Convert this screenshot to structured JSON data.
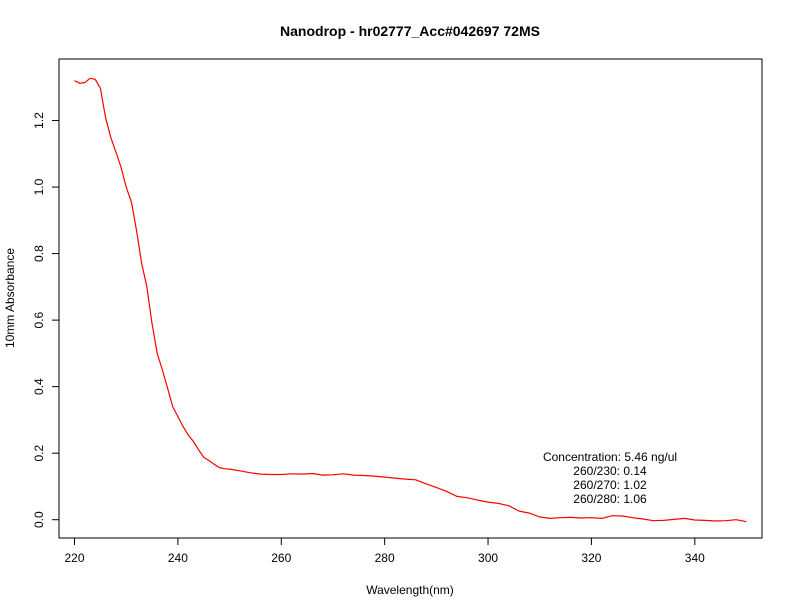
{
  "chart_data": {
    "type": "line",
    "title": "Nanodrop - hr02777_Acc#042697 72MS",
    "xlabel": "Wavelength(nm)",
    "ylabel": "10mm Absorbance",
    "xlim": [
      217,
      353
    ],
    "ylim": [
      -0.055,
      1.385
    ],
    "x_ticks": [
      220,
      240,
      260,
      280,
      300,
      320,
      340
    ],
    "y_ticks": [
      0.0,
      0.2,
      0.4,
      0.6,
      0.8,
      1.0,
      1.2
    ],
    "x_tick_labels": [
      "220",
      "240",
      "260",
      "280",
      "300",
      "320",
      "340"
    ],
    "y_tick_labels": [
      "0.0",
      "0.2",
      "0.4",
      "0.6",
      "0.8",
      "1.0",
      "1.2"
    ],
    "grid": false,
    "series": [
      {
        "color": "#ff0000",
        "x": [
          220,
          221,
          222,
          223,
          224,
          225,
          226,
          227,
          228,
          229,
          230,
          231,
          232,
          233,
          234,
          235,
          236,
          237,
          238,
          239,
          240,
          241,
          242,
          243,
          244,
          245,
          246,
          247,
          248,
          249,
          250,
          252,
          254,
          256,
          258,
          260,
          262,
          264,
          266,
          268,
          270,
          272,
          274,
          276,
          278,
          280,
          282,
          284,
          286,
          288,
          290,
          292,
          294,
          296,
          298,
          300,
          302,
          304,
          306,
          308,
          310,
          312,
          314,
          316,
          318,
          320,
          322,
          324,
          326,
          328,
          330,
          332,
          334,
          336,
          338,
          340,
          342,
          344,
          346,
          348,
          350
        ],
        "y": [
          1.32,
          1.312,
          1.314,
          1.327,
          1.324,
          1.297,
          1.21,
          1.15,
          1.105,
          1.06,
          1.0,
          0.955,
          0.87,
          0.77,
          0.7,
          0.59,
          0.5,
          0.45,
          0.395,
          0.34,
          0.31,
          0.28,
          0.255,
          0.235,
          0.21,
          0.188,
          0.178,
          0.167,
          0.157,
          0.153,
          0.152,
          0.147,
          0.141,
          0.137,
          0.136,
          0.136,
          0.138,
          0.137,
          0.139,
          0.134,
          0.135,
          0.138,
          0.134,
          0.133,
          0.131,
          0.128,
          0.125,
          0.122,
          0.12,
          0.108,
          0.097,
          0.085,
          0.07,
          0.066,
          0.059,
          0.053,
          0.049,
          0.042,
          0.026,
          0.02,
          0.008,
          0.004,
          0.006,
          0.007,
          0.005,
          0.006,
          0.004,
          0.012,
          0.011,
          0.006,
          0.002,
          -0.003,
          -0.002,
          0.001,
          0.004,
          -0.001,
          -0.002,
          -0.004,
          -0.003,
          0.0,
          -0.006
        ]
      }
    ],
    "annotations": [
      "Concentration: 5.46 ng/ul",
      "260/230: 0.14",
      "260/270: 1.02",
      "260/280: 1.06"
    ]
  }
}
